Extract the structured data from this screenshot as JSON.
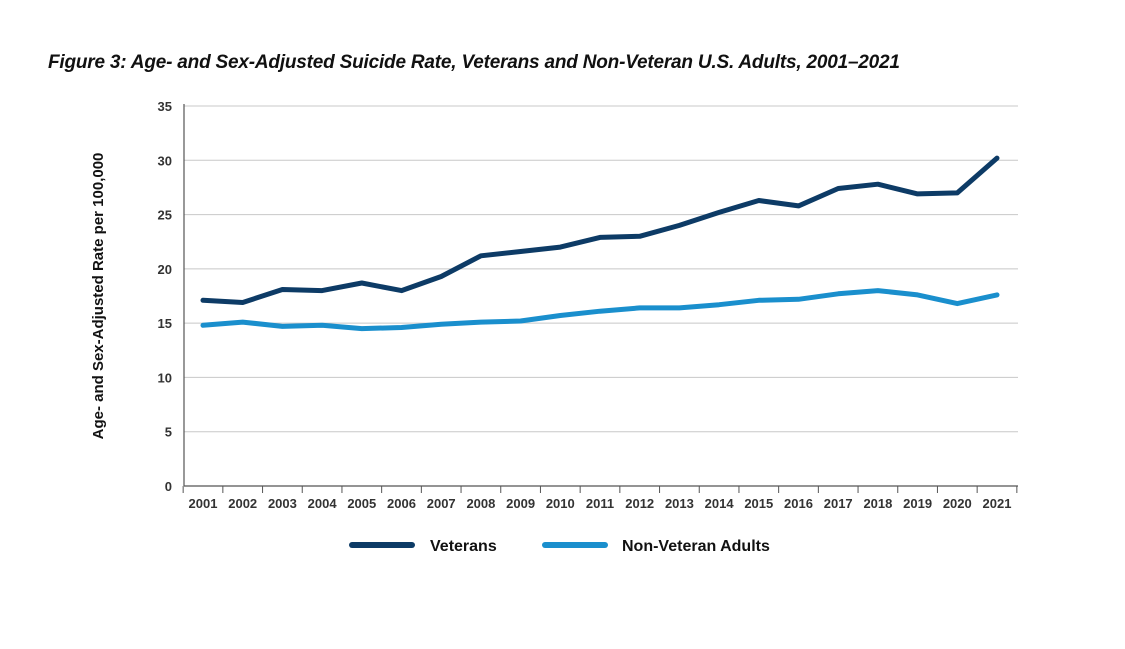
{
  "chart_data": {
    "type": "line",
    "title": "Figure 3: Age- and Sex-Adjusted Suicide Rate, Veterans and Non-Veteran U.S. Adults, 2001–2021",
    "xlabel": "",
    "ylabel": "Age- and Sex-Adjusted Rate per 100,000",
    "ylim": [
      0,
      35
    ],
    "yticks": [
      "0",
      "5",
      "10",
      "15",
      "20",
      "25",
      "30",
      "35"
    ],
    "categories": [
      "2001",
      "2002",
      "2003",
      "2004",
      "2005",
      "2006",
      "2007",
      "2008",
      "2009",
      "2010",
      "2011",
      "2012",
      "2013",
      "2014",
      "2015",
      "2016",
      "2017",
      "2018",
      "2019",
      "2020",
      "2021"
    ],
    "grid": "horizontal",
    "legend_position": "bottom",
    "series": [
      {
        "name": "Veterans",
        "color": "#0d3b66",
        "values": [
          17.1,
          16.9,
          18.1,
          18.0,
          18.7,
          18.0,
          19.3,
          21.2,
          21.6,
          22.0,
          22.9,
          23.0,
          24.0,
          25.2,
          26.3,
          25.8,
          27.4,
          27.8,
          26.9,
          27.0,
          30.2
        ]
      },
      {
        "name": "Non-Veteran Adults",
        "color": "#1a8fcd",
        "values": [
          14.8,
          15.1,
          14.7,
          14.8,
          14.5,
          14.6,
          14.9,
          15.1,
          15.2,
          15.7,
          16.1,
          16.4,
          16.4,
          16.7,
          17.1,
          17.2,
          17.7,
          18.0,
          17.6,
          16.8,
          17.6
        ]
      }
    ]
  }
}
